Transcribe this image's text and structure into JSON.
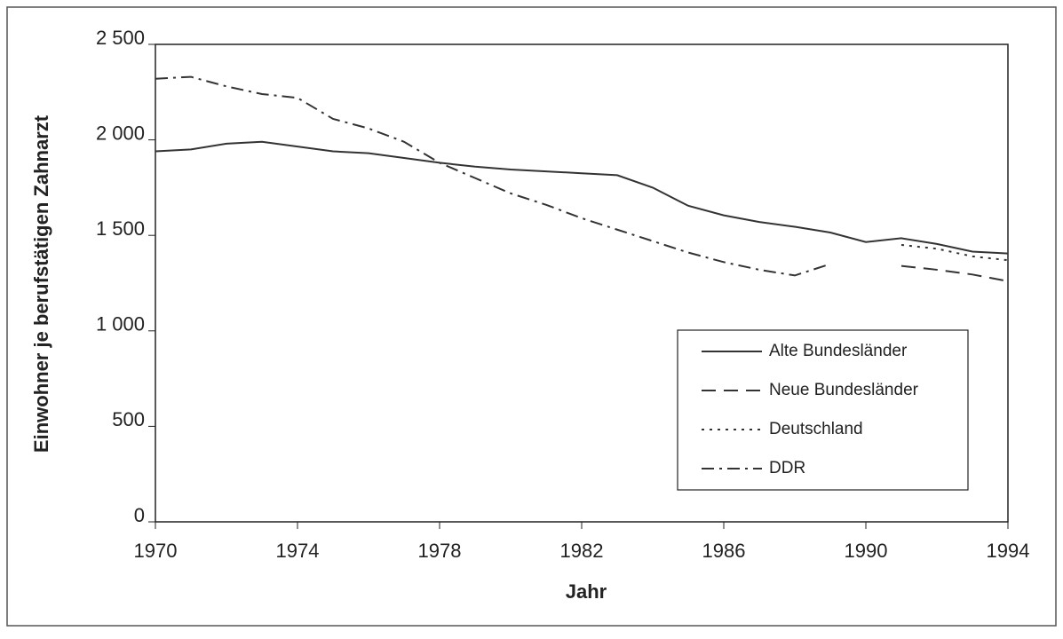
{
  "chart_data": {
    "type": "line",
    "x_label": "Jahr",
    "y_label": "Einwohner je berufstätigen Zahnarzt",
    "x": [
      1970,
      1971,
      1972,
      1973,
      1974,
      1975,
      1976,
      1977,
      1978,
      1979,
      1980,
      1981,
      1982,
      1983,
      1984,
      1985,
      1986,
      1987,
      1988,
      1989,
      1990,
      1991,
      1992,
      1993,
      1994
    ],
    "xlim": [
      1970,
      1994
    ],
    "xticks": [
      1970,
      1974,
      1978,
      1982,
      1986,
      1990,
      1994
    ],
    "ylim": [
      0,
      2500
    ],
    "yticks": [
      0,
      {
        "value": 500,
        "label": "500"
      },
      {
        "value": 1000,
        "label": "1 000"
      },
      {
        "value": 1500,
        "label": "1 500"
      },
      {
        "value": 2000,
        "label": "2 000"
      },
      {
        "value": 2500,
        "label": "2 500"
      }
    ],
    "grid": false,
    "series": [
      {
        "name": "Alte Bundesländer",
        "color": "#333333",
        "dash": "solid",
        "values": [
          1940,
          1950,
          1980,
          1990,
          1965,
          1940,
          1930,
          1905,
          1880,
          1860,
          1845,
          1835,
          1825,
          1815,
          1750,
          1655,
          1605,
          1570,
          1545,
          1515,
          1465,
          1485,
          1455,
          1415,
          1405
        ]
      },
      {
        "name": "Neue Bundesländer",
        "color": "#333333",
        "dash": "dashed",
        "values": [
          null,
          null,
          null,
          null,
          null,
          null,
          null,
          null,
          null,
          null,
          null,
          null,
          null,
          null,
          null,
          null,
          null,
          null,
          null,
          null,
          null,
          1340,
          1320,
          1295,
          1260
        ]
      },
      {
        "name": "Deutschland",
        "color": "#333333",
        "dash": "dotted",
        "values": [
          null,
          null,
          null,
          null,
          null,
          null,
          null,
          null,
          null,
          null,
          null,
          null,
          null,
          null,
          null,
          null,
          null,
          null,
          null,
          null,
          null,
          1450,
          1430,
          1390,
          1370
        ]
      },
      {
        "name": "DDR",
        "color": "#333333",
        "dash": "dashdot",
        "values": [
          2320,
          2330,
          2280,
          2240,
          2220,
          2110,
          2060,
          1990,
          1880,
          1800,
          1720,
          1660,
          1590,
          1530,
          1470,
          1410,
          1360,
          1320,
          1290,
          1350,
          null,
          null,
          null,
          null,
          null
        ]
      }
    ]
  }
}
